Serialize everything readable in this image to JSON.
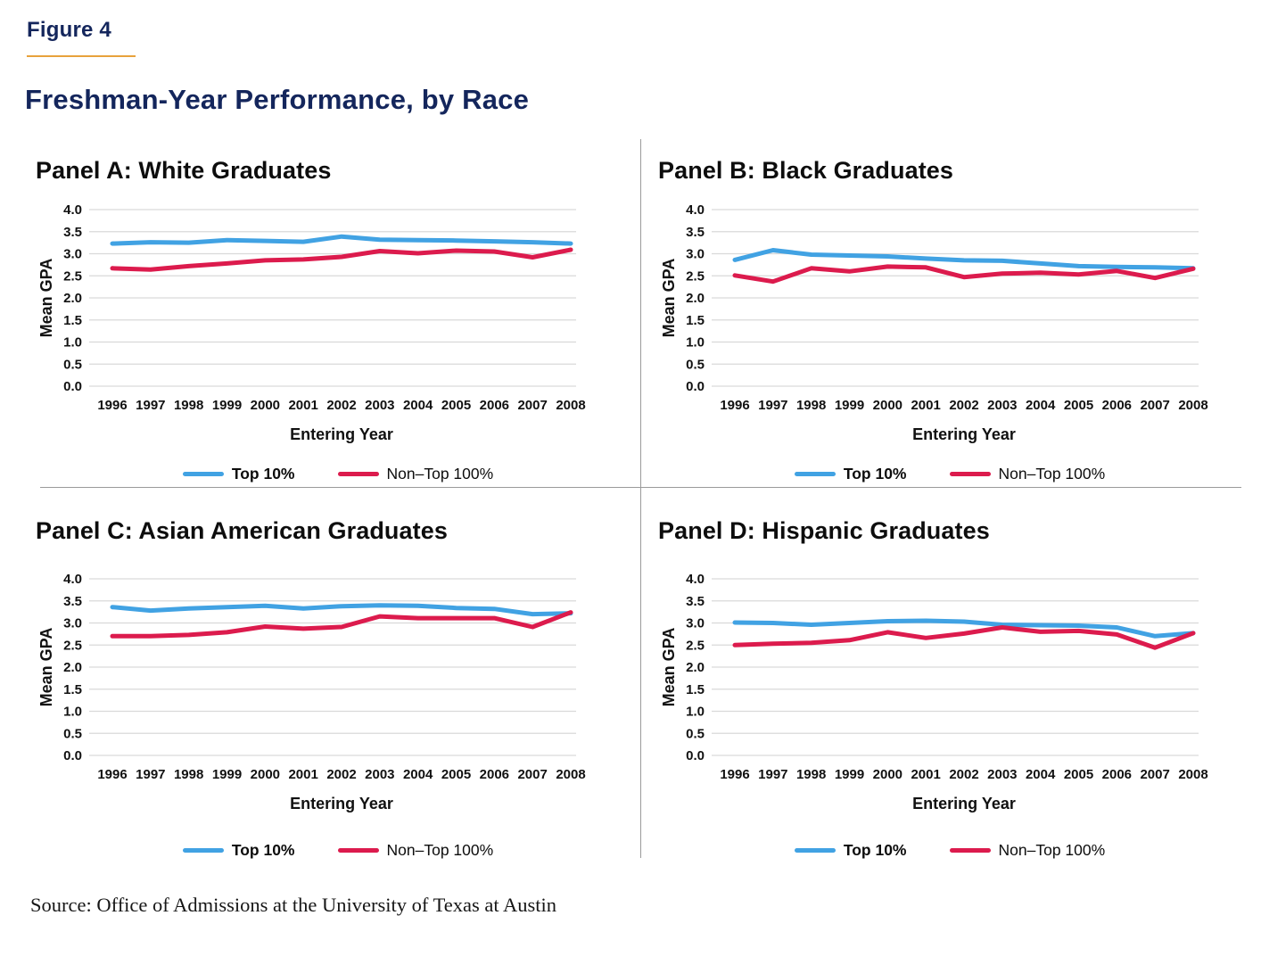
{
  "figure": {
    "label": "Figure 4",
    "title": "Freshman-Year Performance, by Race",
    "source": "Source: Office of Admissions at the University of Texas at Austin"
  },
  "legend": {
    "top10_label": "Top 10%",
    "nontop_label": "Non–Top 100%"
  },
  "colors": {
    "top10_line": "#41a2e3",
    "nontop_line": "#dc1b4d",
    "gridline": "#d9d9d9",
    "title_navy": "#14265c",
    "gold_rule": "#e8a23c",
    "divider": "#9b9b9b"
  },
  "chart_data": [
    {
      "type": "line",
      "panel": "Panel A: White Graduates",
      "xlabel": "Entering Year",
      "ylabel": "Mean GPA",
      "ylim": [
        0.0,
        4.0
      ],
      "ytick_step": 0.5,
      "grid": true,
      "legend_position": "bottom",
      "x": [
        1996,
        1997,
        1998,
        1999,
        2000,
        2001,
        2002,
        2003,
        2004,
        2005,
        2006,
        2007,
        2008
      ],
      "series": [
        {
          "name": "Top 10%",
          "values": [
            3.23,
            3.26,
            3.25,
            3.31,
            3.29,
            3.27,
            3.39,
            3.32,
            3.31,
            3.3,
            3.28,
            3.26,
            3.23
          ]
        },
        {
          "name": "Non–Top 100%",
          "values": [
            2.67,
            2.64,
            2.72,
            2.78,
            2.85,
            2.87,
            2.93,
            3.06,
            3.01,
            3.07,
            3.05,
            2.92,
            3.09
          ]
        }
      ]
    },
    {
      "type": "line",
      "panel": "Panel B: Black Graduates",
      "xlabel": "Entering Year",
      "ylabel": "Mean GPA",
      "ylim": [
        0.0,
        4.0
      ],
      "ytick_step": 0.5,
      "grid": true,
      "legend_position": "bottom",
      "x": [
        1996,
        1997,
        1998,
        1999,
        2000,
        2001,
        2002,
        2003,
        2004,
        2005,
        2006,
        2007,
        2008
      ],
      "series": [
        {
          "name": "Top 10%",
          "values": [
            2.86,
            3.08,
            2.98,
            2.96,
            2.94,
            2.89,
            2.85,
            2.84,
            2.78,
            2.72,
            2.7,
            2.69,
            2.67
          ]
        },
        {
          "name": "Non–Top 100%",
          "values": [
            2.51,
            2.37,
            2.67,
            2.6,
            2.71,
            2.69,
            2.47,
            2.55,
            2.57,
            2.53,
            2.61,
            2.45,
            2.66
          ]
        }
      ]
    },
    {
      "type": "line",
      "panel": "Panel C: Asian American Graduates",
      "xlabel": "Entering Year",
      "ylabel": "Mean GPA",
      "ylim": [
        0.0,
        4.0
      ],
      "ytick_step": 0.5,
      "grid": true,
      "legend_position": "bottom",
      "x": [
        1996,
        1997,
        1998,
        1999,
        2000,
        2001,
        2002,
        2003,
        2004,
        2005,
        2006,
        2007,
        2008
      ],
      "series": [
        {
          "name": "Top 10%",
          "values": [
            3.36,
            3.28,
            3.33,
            3.36,
            3.39,
            3.33,
            3.38,
            3.4,
            3.39,
            3.34,
            3.32,
            3.2,
            3.22
          ]
        },
        {
          "name": "Non–Top 100%",
          "values": [
            2.7,
            2.7,
            2.73,
            2.79,
            2.92,
            2.87,
            2.91,
            3.15,
            3.11,
            3.11,
            3.11,
            2.91,
            3.24
          ]
        }
      ]
    },
    {
      "type": "line",
      "panel": "Panel D: Hispanic Graduates",
      "xlabel": "Entering Year",
      "ylabel": "Mean GPA",
      "ylim": [
        0.0,
        4.0
      ],
      "ytick_step": 0.5,
      "grid": true,
      "legend_position": "bottom",
      "x": [
        1996,
        1997,
        1998,
        1999,
        2000,
        2001,
        2002,
        2003,
        2004,
        2005,
        2006,
        2007,
        2008
      ],
      "series": [
        {
          "name": "Top 10%",
          "values": [
            3.01,
            3.0,
            2.96,
            3.0,
            3.04,
            3.05,
            3.03,
            2.96,
            2.95,
            2.94,
            2.9,
            2.7,
            2.77
          ]
        },
        {
          "name": "Non–Top 100%",
          "values": [
            2.5,
            2.53,
            2.55,
            2.61,
            2.79,
            2.66,
            2.76,
            2.9,
            2.8,
            2.82,
            2.74,
            2.44,
            2.77
          ]
        }
      ]
    }
  ]
}
